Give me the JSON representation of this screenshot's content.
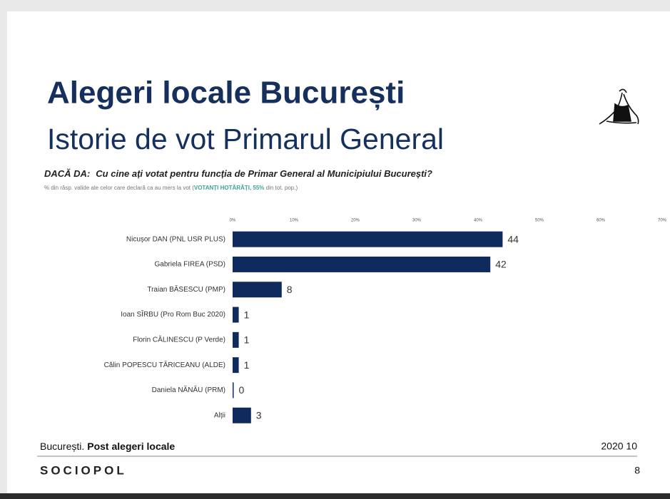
{
  "header": {
    "title": "Alegeri locale București",
    "subtitle": "Istorie de vot Primarul General"
  },
  "chart_data": {
    "type": "bar",
    "orientation": "horizontal",
    "question_prefix": "DACĂ DA:",
    "question": "Cu cine ați votat pentru funcția de Primar General al Municipiului București?",
    "note_before": "% din răsp. valide ale celor care declară ca au mers la vot (",
    "note_highlight": "VOTANȚI HOTĂRÂȚI, 55%",
    "note_after": " din tot. pop.)",
    "categories": [
      "Nicușor DAN (PNL USR PLUS)",
      "Gabriela FIREA (PSD)",
      "Traian BĂSESCU (PMP)",
      "Ioan SÎRBU (Pro Rom Buc 2020)",
      "Florin CĂLINESCU (P Verde)",
      "Călin POPESCU TĂRICEANU (ALDE)",
      "Daniela NĂNĂU (PRM)",
      "Alții"
    ],
    "values": [
      44,
      42,
      8,
      1,
      1,
      1,
      0,
      3
    ],
    "color": "#0f2a5c",
    "xlim": [
      0,
      70
    ],
    "xticks": [
      {
        "value": 0,
        "label": "0%"
      },
      {
        "value": 10,
        "label": "10%"
      },
      {
        "value": 20,
        "label": "20%"
      },
      {
        "value": 30,
        "label": "30%"
      },
      {
        "value": 40,
        "label": "40%"
      },
      {
        "value": 50,
        "label": "50%"
      },
      {
        "value": 60,
        "label": "60%"
      },
      {
        "value": 70,
        "label": "70%"
      }
    ]
  },
  "footer": {
    "location": "București.",
    "label": "Post alegeri locale",
    "date": "2020 10",
    "brand": "SOCIOPOL",
    "page": "8"
  }
}
